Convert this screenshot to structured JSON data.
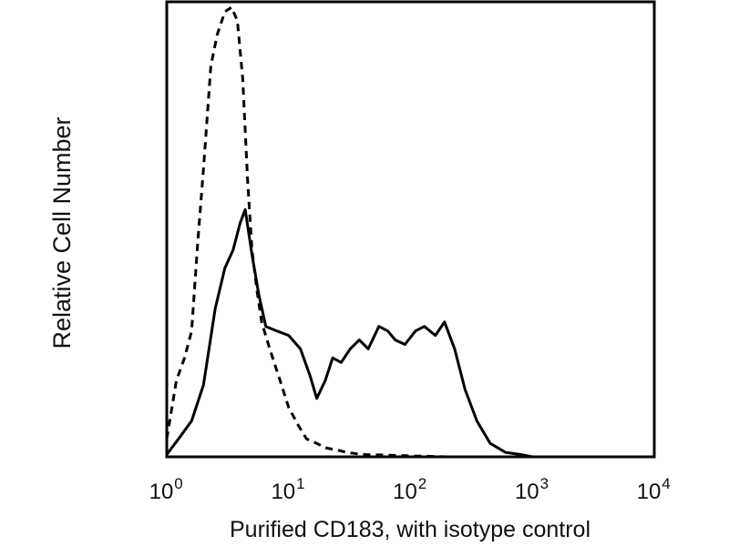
{
  "chart_data": {
    "type": "line",
    "title": "",
    "xlabel": "Purified CD183, with isotype control",
    "ylabel": "Relative Cell Number",
    "x_scale": "log",
    "xlim": [
      1,
      10000
    ],
    "ylim": [
      0,
      100
    ],
    "grid": false,
    "legend": "none",
    "x_ticks": [
      {
        "value": 1,
        "base": "10",
        "exp": "0"
      },
      {
        "value": 10,
        "base": "10",
        "exp": "1"
      },
      {
        "value": 100,
        "base": "10",
        "exp": "2"
      },
      {
        "value": 1000,
        "base": "10",
        "exp": "3"
      },
      {
        "value": 10000,
        "base": "10",
        "exp": "4"
      }
    ],
    "series": [
      {
        "style": "solid",
        "color": "#000000",
        "x": [
          1.0,
          1.25,
          1.6,
          2.0,
          2.5,
          3.0,
          3.5,
          4.0,
          4.4,
          5.0,
          5.7,
          6.5,
          8.0,
          10.0,
          12.5,
          15.0,
          17.0,
          20.0,
          23.0,
          27.0,
          32.0,
          38.0,
          45.0,
          55.0,
          65.0,
          75.0,
          90.0,
          110.0,
          130.0,
          160.0,
          190.0,
          230.0,
          280.0,
          350.0,
          450.0,
          600.0,
          800.0,
          1000.0
        ],
        "y": [
          0.5,
          4,
          8,
          16,
          33,
          42,
          46,
          52,
          55,
          45,
          36,
          29,
          28,
          27,
          24,
          18,
          13,
          17,
          22,
          21,
          24,
          26,
          24,
          29,
          28,
          26,
          25,
          28,
          29,
          27,
          30,
          24,
          15,
          8,
          3,
          1,
          0.5,
          0
        ]
      },
      {
        "style": "dashed",
        "color": "#000000",
        "x": [
          1.0,
          1.2,
          1.4,
          1.6,
          1.8,
          2.0,
          2.3,
          2.6,
          3.0,
          3.4,
          3.8,
          4.2,
          4.6,
          5.0,
          5.5,
          6.0,
          7.0,
          8.5,
          10.0,
          12.0,
          14.0,
          17.0,
          20.0,
          25.0,
          30.0,
          40.0,
          60.0,
          100.0,
          150.0,
          200.0
        ],
        "y": [
          4,
          17,
          22,
          28,
          48,
          64,
          87,
          94,
          99,
          100,
          97,
          84,
          62,
          46,
          37,
          30,
          24,
          17,
          11,
          7,
          4,
          3,
          2,
          1.5,
          1,
          0.5,
          0.4,
          0.2,
          0.1,
          0
        ]
      }
    ]
  }
}
